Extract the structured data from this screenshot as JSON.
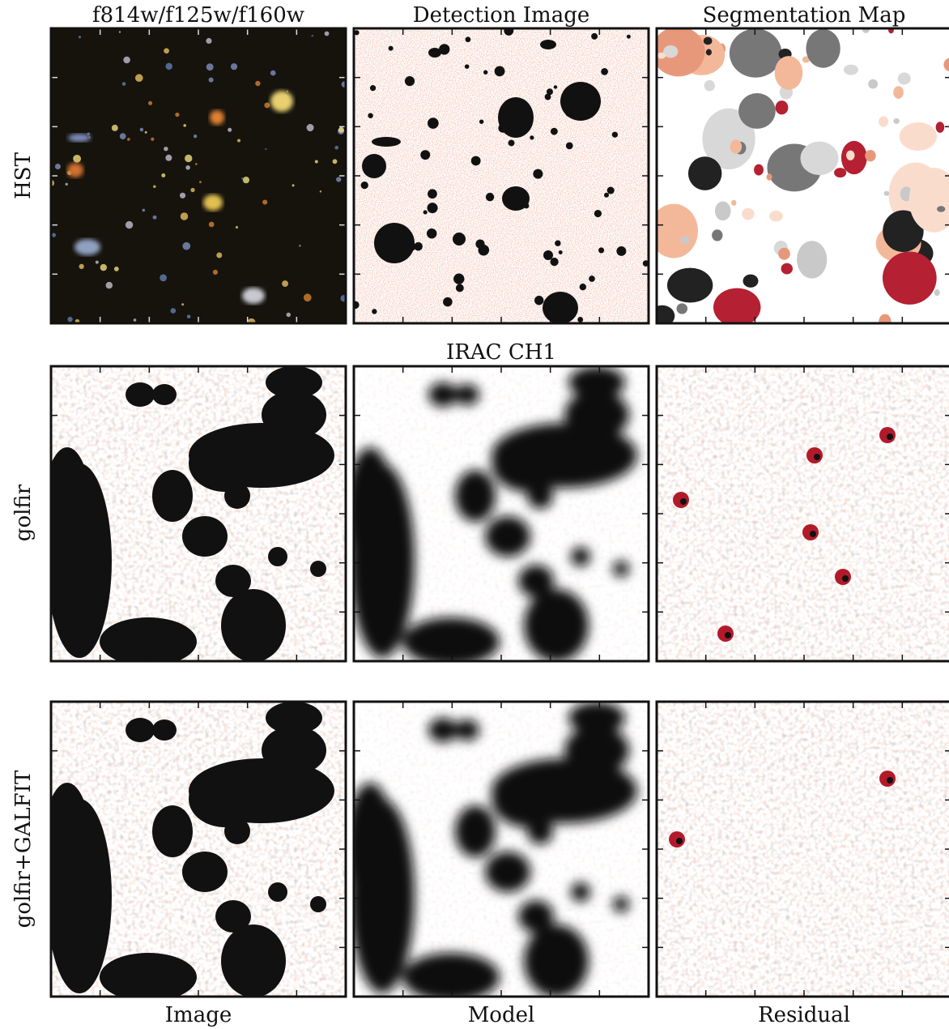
{
  "column_titles": [
    "f814w/f125w/f160w",
    "Detection Image",
    "Segmentation Map"
  ],
  "middle_title": "IRAC CH1",
  "row_labels": [
    "HST",
    "golfir",
    "golfir+GALFIT"
  ],
  "column_labels": [
    "Image",
    "Model",
    "Residual"
  ]
}
